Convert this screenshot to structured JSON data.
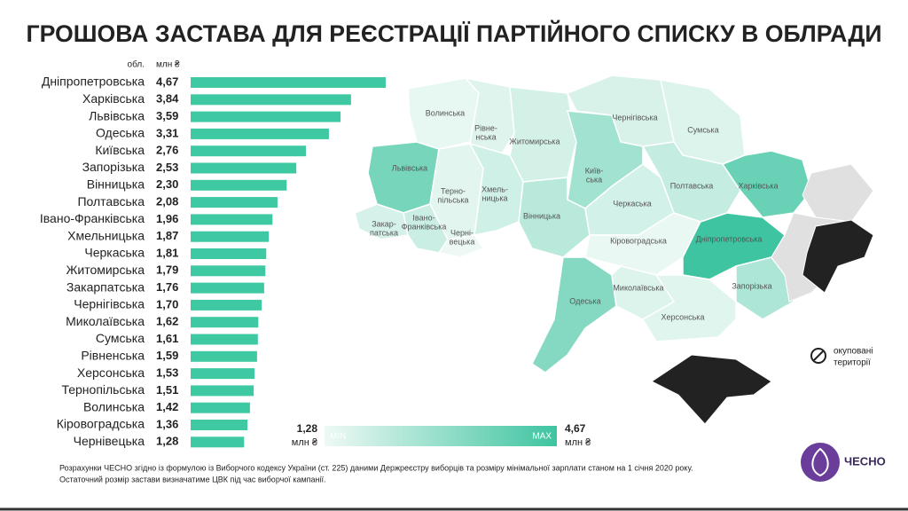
{
  "chart_data": {
    "type": "bar",
    "title": "ГРОШОВА ЗАСТАВА ДЛЯ РЕЄСТРАЦІЇ ПАРТІЙНОГО СПИСКУ В ОБЛРАДИ",
    "category_header": "обл.",
    "value_header": "млн ₴",
    "categories": [
      "Дніпропетровська",
      "Харківська",
      "Львівська",
      "Одеська",
      "Київська",
      "Запорізька",
      "Вінницька",
      "Полтавська",
      "Івано-Франківська",
      "Хмельницька",
      "Черкаська",
      "Житомирська",
      "Закарпатська",
      "Чернігівська",
      "Миколаївська",
      "Сумська",
      "Рівненська",
      "Херсонська",
      "Тернопільська",
      "Волинська",
      "Кіровоградська",
      "Чернівецька"
    ],
    "values": [
      4.67,
      3.84,
      3.59,
      3.31,
      2.76,
      2.53,
      2.3,
      2.08,
      1.96,
      1.87,
      1.81,
      1.79,
      1.76,
      1.7,
      1.62,
      1.61,
      1.59,
      1.53,
      1.51,
      1.42,
      1.36,
      1.28
    ],
    "value_labels": [
      "4,67",
      "3,84",
      "3,59",
      "3,31",
      "2,76",
      "2,53",
      "2,30",
      "2,08",
      "1,96",
      "1,87",
      "1,81",
      "1,79",
      "1,76",
      "1,70",
      "1,62",
      "1,61",
      "1,59",
      "1,53",
      "1,51",
      "1,42",
      "1,36",
      "1,28"
    ],
    "color": "#3ec9a2",
    "scale": {
      "min": {
        "value": 1.28,
        "label": "1,28"
      },
      "max": {
        "value": 4.67,
        "label": "4,67"
      },
      "unit": "млн ₴",
      "min_text": "MIN",
      "max_text": "MAX",
      "min_color": "#eef9f5",
      "max_color": "#3ec4a0"
    },
    "map_regions": [
      [
        "Волинська"
      ],
      [
        "Рівне-",
        "нська"
      ],
      [
        "Житомирська"
      ],
      [
        "Чернігівська"
      ],
      [
        "Сумська"
      ],
      [
        "Львівська"
      ],
      [
        "Терно-",
        "пільська"
      ],
      [
        "Хмель-",
        "ницька"
      ],
      [
        "Київ-",
        "ська"
      ],
      [
        "Вінницька"
      ],
      [
        "Черкаська"
      ],
      [
        "Полтавська"
      ],
      [
        "Харківська"
      ],
      [
        "Закар-",
        "патська"
      ],
      [
        "Івано-",
        "Франківська"
      ],
      [
        "Черні-",
        "вецька"
      ],
      [
        "Кіровоградська"
      ],
      [
        "Дніпропетровська"
      ],
      [
        "Одеська"
      ],
      [
        "Миколаївська"
      ],
      [
        "Запорізька"
      ],
      [
        "Херсонська"
      ]
    ],
    "occupied_label": [
      "окуповані",
      "території"
    ],
    "footnote": [
      "Розрахунки ЧЕСНО згідно із формулою із Виборчого кодексу України (ст. 225) даними Держреєстру виборців та розміру мінімальної зарплати станом на 1 січня 2020 року.",
      "Остаточний розмір застави визначатиме ЦВК під час виборчої кампанії."
    ],
    "logo": "ЧЕСНО"
  }
}
